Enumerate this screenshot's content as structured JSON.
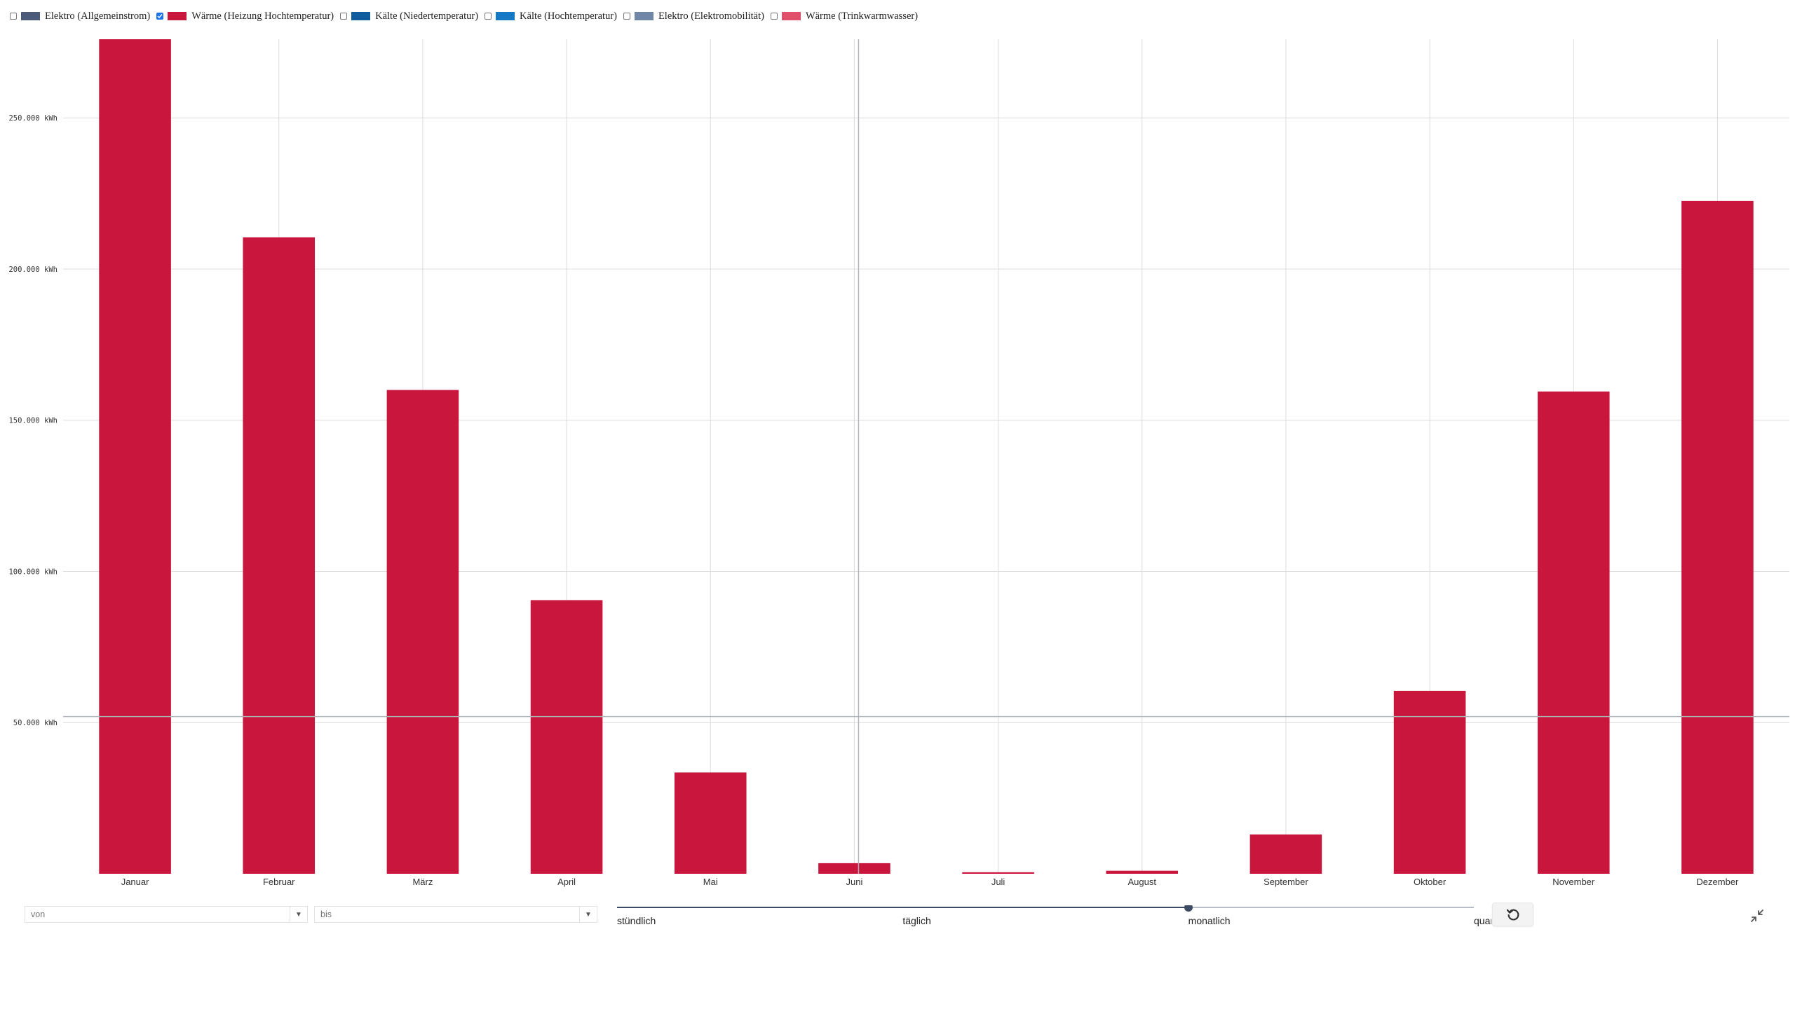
{
  "legend": {
    "items": [
      {
        "label": "Elektro (Allgemeinstrom)",
        "checked": false,
        "color": "#4a5a78",
        "icon": "checkbox-icon"
      },
      {
        "label": "Wärme (Heizung Hochtemperatur)",
        "checked": true,
        "color": "#c8163c",
        "icon": "checkbox-icon"
      },
      {
        "label": "Kälte (Niedertemperatur)",
        "checked": false,
        "color": "#0f5d9c",
        "icon": "checkbox-icon"
      },
      {
        "label": "Kälte (Hochtemperatur)",
        "checked": false,
        "color": "#1578c4",
        "icon": "checkbox-icon"
      },
      {
        "label": "Elektro (Elektromobilität)",
        "checked": false,
        "color": "#7086a6",
        "icon": "checkbox-icon"
      },
      {
        "label": "Wärme (Trinkwarmwasser)",
        "checked": false,
        "color": "#e0506a",
        "icon": "checkbox-icon"
      }
    ]
  },
  "chart_data": {
    "type": "bar",
    "categories": [
      "Januar",
      "Februar",
      "März",
      "April",
      "Mai",
      "Juni",
      "Juli",
      "August",
      "September",
      "Oktober",
      "November",
      "Dezember"
    ],
    "series": [
      {
        "name": "Wärme (Heizung Hochtemperatur)",
        "color": "#c8163c",
        "values": [
          276000,
          210500,
          160000,
          90500,
          33500,
          3500,
          500,
          1000,
          13000,
          60500,
          159500,
          222500
        ]
      }
    ],
    "yticks": [
      50000,
      100000,
      150000,
      200000,
      250000
    ],
    "ytick_labels": [
      "50.000 kWh",
      "100.000 kWh",
      "150.000 kWh",
      "200.000 kWh",
      "250.000 kWh"
    ],
    "ylim": [
      0,
      276000
    ],
    "reference_line": 52000,
    "grid": true,
    "xlabel": "",
    "ylabel": ""
  },
  "controls": {
    "from_placeholder": "von",
    "to_placeholder": "bis",
    "dropdown_icon": "chevron-down-icon",
    "interval_slider": {
      "labels": [
        "stündlich",
        "täglich",
        "monatlich",
        "quartalsweise"
      ],
      "selected_index": 2
    },
    "reset_icon": "reset-icon",
    "collapse_icon": "collapse-icon"
  }
}
